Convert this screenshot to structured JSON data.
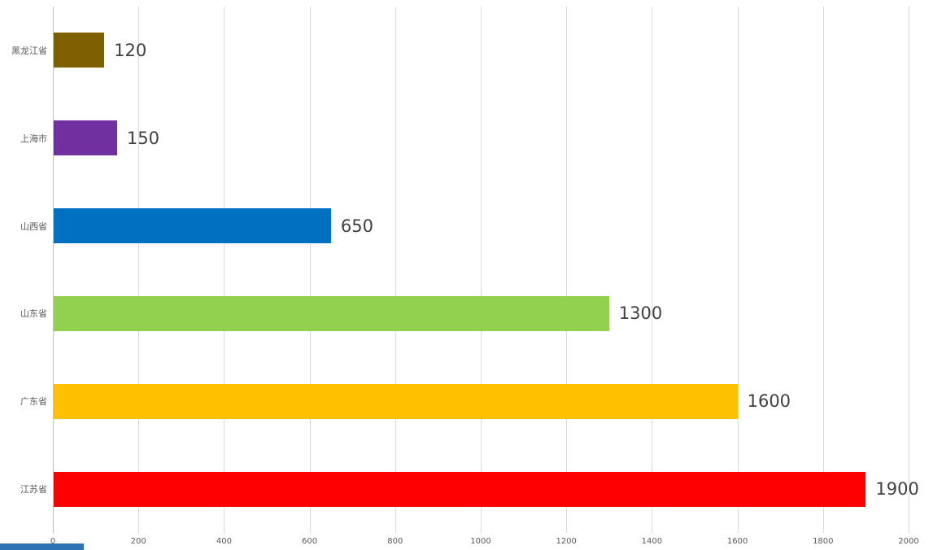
{
  "chart_data": {
    "type": "bar",
    "orientation": "horizontal",
    "title": "",
    "xlabel": "",
    "ylabel": "",
    "categories_top_to_bottom": [
      "黑龙江省",
      "上海市",
      "山西省",
      "山东省",
      "广东省",
      "江苏省"
    ],
    "values": [
      120,
      150,
      650,
      1300,
      1600,
      1900
    ],
    "data_labels": [
      "120",
      "150",
      "650",
      "1300",
      "1600",
      "1900"
    ],
    "colors": [
      "#7F6000",
      "#7030A0",
      "#0070C0",
      "#92D050",
      "#FFC000",
      "#FF0000"
    ],
    "xlim": [
      0,
      2000
    ],
    "x_ticks": [
      0,
      200,
      400,
      600,
      800,
      1000,
      1200,
      1400,
      1600,
      1800,
      2000
    ],
    "grid": "vertical",
    "legend": "none",
    "label_color": "#404040",
    "axis_text_color": "#595959",
    "gridline_color": "#d9d9d9"
  },
  "misc": {
    "corner_strip_color": "#2E74B5"
  }
}
